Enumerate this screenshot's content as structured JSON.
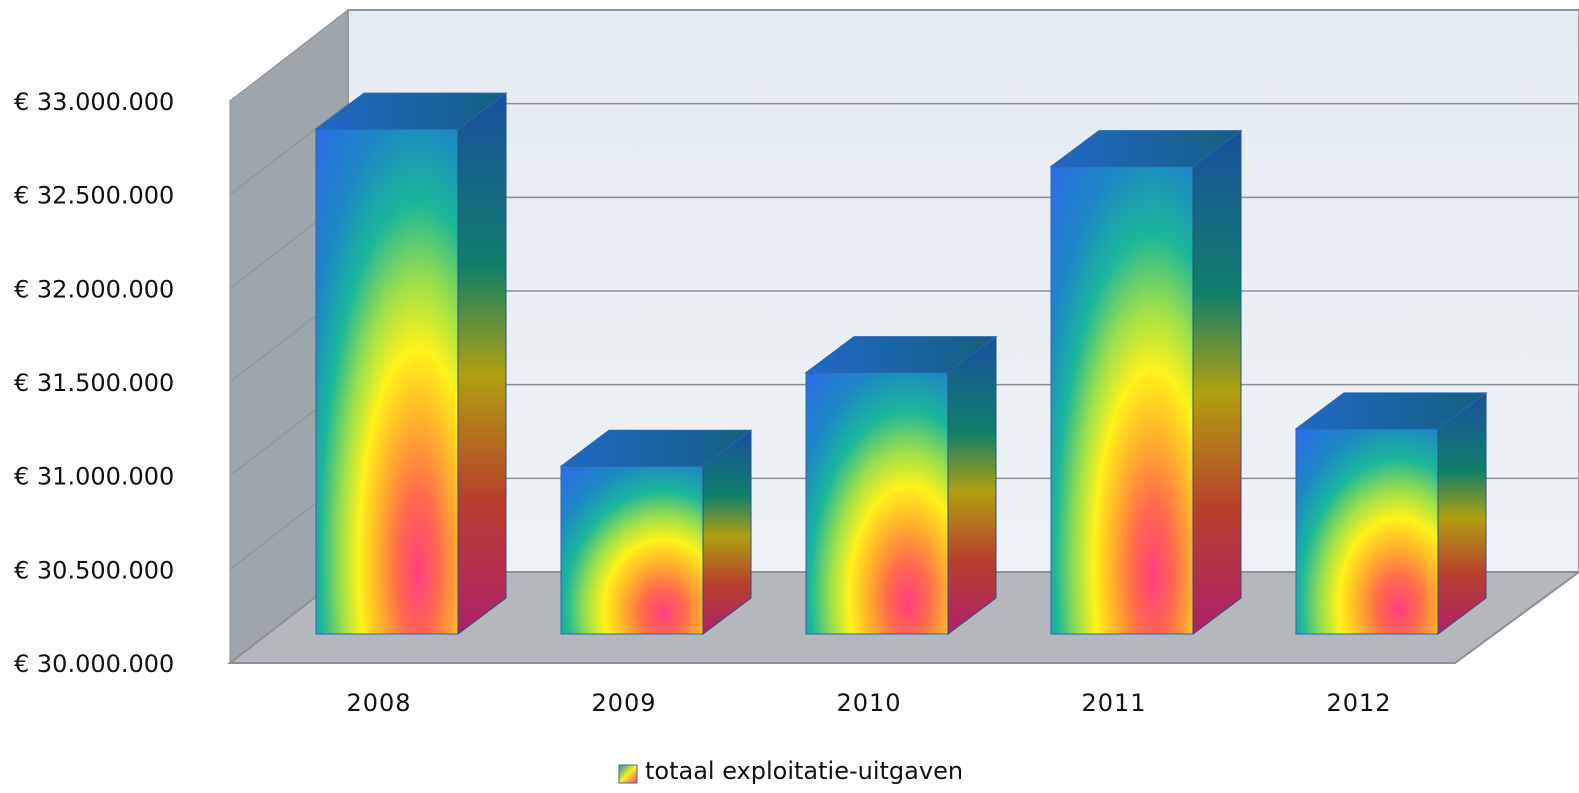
{
  "chart_data": {
    "type": "bar",
    "style": "3d-column",
    "categories": [
      "2008",
      "2009",
      "2010",
      "2011",
      "2012"
    ],
    "series": [
      {
        "name": "totaal exploitatie-uitgaven",
        "values": [
          32850000,
          31050000,
          31550000,
          32650000,
          31250000
        ]
      }
    ],
    "ylim": [
      30000000,
      33000000
    ],
    "yticks": [
      30000000,
      30500000,
      31000000,
      31500000,
      32000000,
      32500000,
      33000000
    ],
    "ytick_labels": [
      "€ 30.000.000",
      "€ 30.500.000",
      "€ 31.000.000",
      "€ 31.500.000",
      "€ 32.000.000",
      "€ 32.500.000",
      "€ 33.000.000"
    ],
    "title": "",
    "xlabel": "",
    "ylabel": "",
    "grid": true,
    "legend_position": "bottom-center",
    "colors": {
      "wall_back": "#e8eef4",
      "wall_side": "#9ea5ab",
      "floor": "#b4b8bc",
      "gridline": "#8a9096",
      "bar_top": "#1a5ea8",
      "gradient": [
        "#ff3f80",
        "#ff6a4c",
        "#ffb52a",
        "#fff21a",
        "#9ee04a",
        "#1bb79a",
        "#1d87c6",
        "#2b6fe3"
      ]
    }
  }
}
